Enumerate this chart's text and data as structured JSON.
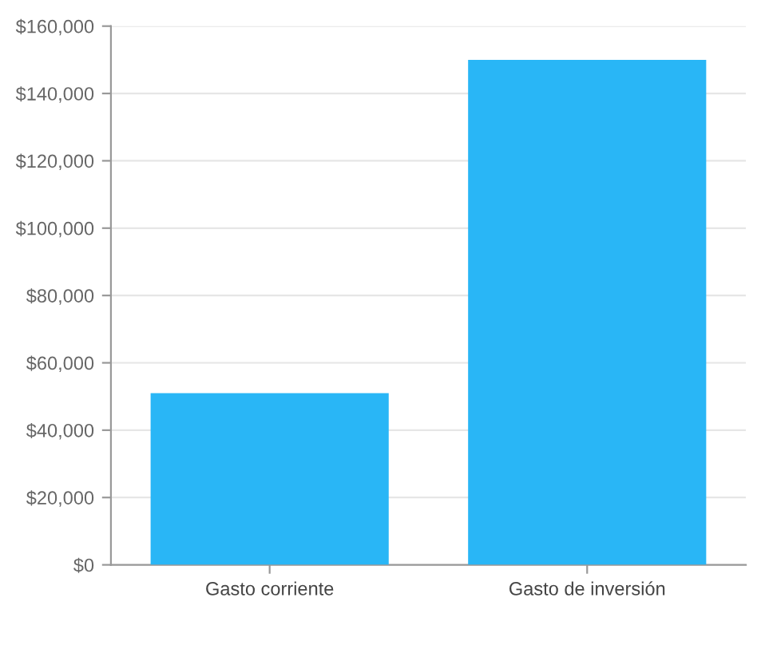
{
  "chart_data": {
    "type": "bar",
    "categories": [
      "Gasto corriente",
      "Gasto de inversión"
    ],
    "values": [
      51000,
      150000
    ],
    "color": "#29b6f6",
    "ylim": [
      0,
      160000
    ],
    "yticks": [
      {
        "value": 0,
        "label": "$0"
      },
      {
        "value": 20000,
        "label": "$20,000"
      },
      {
        "value": 40000,
        "label": "$40,000"
      },
      {
        "value": 60000,
        "label": "$60,000"
      },
      {
        "value": 80000,
        "label": "$80,000"
      },
      {
        "value": 100000,
        "label": "$100,000"
      },
      {
        "value": 120000,
        "label": "$120,000"
      },
      {
        "value": 140000,
        "label": "$140,000"
      },
      {
        "value": 160000,
        "label": "$160,000"
      }
    ],
    "grid": "y"
  }
}
